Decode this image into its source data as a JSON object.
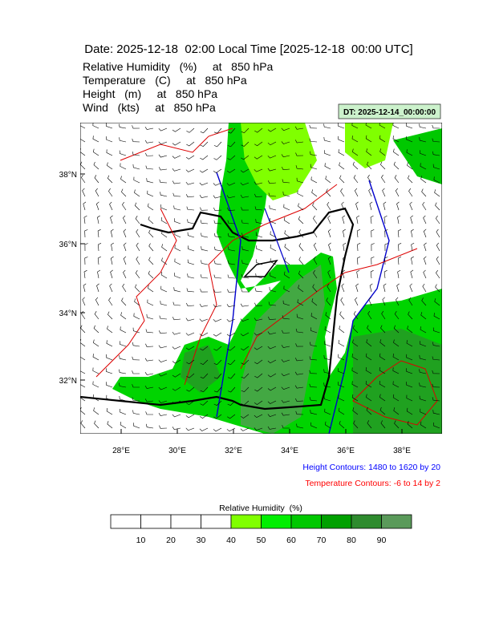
{
  "header": {
    "title": "Date: 2025-12-18  02:00 Local Time [2025-12-18  00:00 UTC]",
    "lines": [
      "Relative Humidity   (%)     at   850 hPa",
      "Temperature   (C)     at   850 hPa",
      "Height   (m)     at   850 hPa",
      "Wind   (kts)     at   850 hPa"
    ]
  },
  "dt_label": "DT: 2025-12-14_00:00:00",
  "map": {
    "lat_labels": [
      "38°N",
      "36°N",
      "34°N",
      "32°N"
    ],
    "lon_labels": [
      "28°E",
      "30°E",
      "32°E",
      "34°E",
      "36°E",
      "38°E"
    ]
  },
  "notes": {
    "height": "Height Contours: 1480 to 1620 by 20",
    "temperature": "Temperature Contours: -6 to 14 by 2"
  },
  "colorbar": {
    "title": "Relative Humidity  (%)",
    "labels": [
      "10",
      "20",
      "30",
      "40",
      "50",
      "60",
      "70",
      "80",
      "90"
    ],
    "colors": [
      "#ffffff",
      "#ffffff",
      "#ffffff",
      "#ffffff",
      "#80ff00",
      "#00ee00",
      "#00c800",
      "#00a000",
      "#2e8b2e",
      "#5a9a5a"
    ]
  }
}
